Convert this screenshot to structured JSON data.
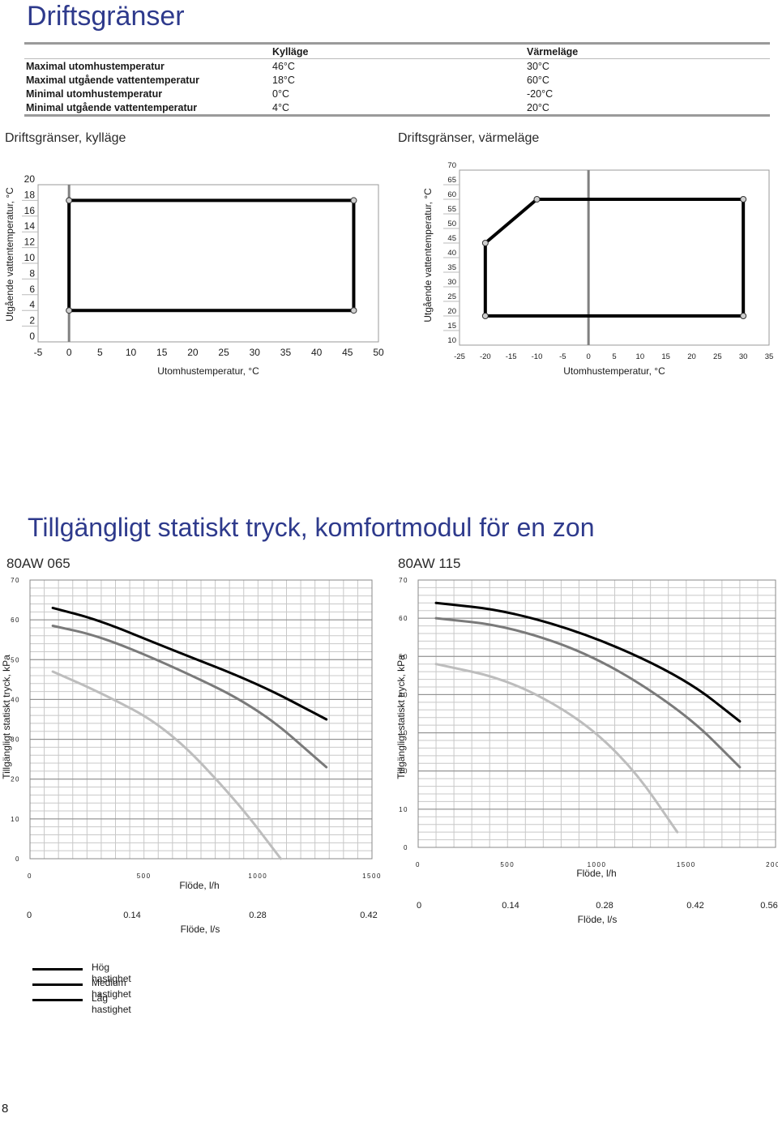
{
  "page_title": "Driftsgränser",
  "limits_table": {
    "headers": [
      "",
      "Kylläge",
      "Värmeläge"
    ],
    "rows": [
      [
        "Maximal utomhustemperatur",
        "46°C",
        "30°C"
      ],
      [
        "Maximal utgående vattentemperatur",
        "18°C",
        "60°C"
      ],
      [
        "Minimal utomhustemperatur",
        "0°C",
        "-20°C"
      ],
      [
        "Minimal utgående vattentemperatur",
        "4°C",
        "20°C"
      ]
    ]
  },
  "chart_cool_title": "Driftsgränser, kylläge",
  "chart_heat_title": "Driftsgränser, värmeläge",
  "section2_title": "Tillgängligt statiskt tryck, komfortmodul för en zon",
  "model_left": "80AW 065",
  "model_right": "80AW 115",
  "page_number": "8",
  "legend": [
    {
      "label": "Hög hastighet"
    },
    {
      "label": "Medium hastighet"
    },
    {
      "label": "Låg hastighet"
    }
  ],
  "chart_data": [
    {
      "id": "cool",
      "type": "line",
      "xlabel": "Utomhustemperatur, °C",
      "ylabel": "Utgående vattentemperatur, °C",
      "x_ticks": [
        "-5",
        "0",
        "5",
        "10",
        "15",
        "20",
        "25",
        "30",
        "35",
        "40",
        "45",
        "50"
      ],
      "y_ticks": [
        "20",
        "18",
        "16",
        "14",
        "12",
        "10",
        "8",
        "6",
        "4",
        "2",
        "0"
      ],
      "xlim": [
        -5,
        50
      ],
      "ylim": [
        0,
        20
      ],
      "vline_x": 0,
      "series": [
        {
          "points": [
            [
              0,
              18
            ],
            [
              46,
              18
            ],
            [
              46,
              4
            ],
            [
              0,
              4
            ],
            [
              0,
              18
            ]
          ]
        }
      ]
    },
    {
      "id": "heat",
      "type": "line",
      "xlabel": "Utomhustemperatur, °C",
      "ylabel": "Utgående vattentemperatur, °C",
      "x_ticks": [
        "-25",
        "-20",
        "-15",
        "-10",
        "-5",
        "0",
        "5",
        "10",
        "15",
        "20",
        "25",
        "30",
        "35"
      ],
      "y_ticks": [
        "70",
        "65",
        "60",
        "55",
        "50",
        "45",
        "40",
        "35",
        "30",
        "25",
        "20",
        "15",
        "10"
      ],
      "xlim": [
        -25,
        35
      ],
      "ylim": [
        10,
        70
      ],
      "vline_x": 0,
      "series": [
        {
          "points": [
            [
              -20,
              20
            ],
            [
              -20,
              45
            ],
            [
              -10,
              60
            ],
            [
              30,
              60
            ],
            [
              30,
              20
            ],
            [
              -20,
              20
            ]
          ]
        }
      ]
    },
    {
      "id": "p065",
      "type": "line",
      "ylabel": "Tillgängligt statiskt tryck, kPa",
      "xlabel": "Flöde, l/h",
      "xlabel2": "Flöde, l/s",
      "x_ticks": [
        "0",
        "500",
        "1000",
        "1500"
      ],
      "x2_ticks": [
        "0",
        "0.14",
        "0.28",
        "0.42"
      ],
      "y_ticks": [
        "70",
        "60",
        "50",
        "40",
        "30",
        "20",
        "10",
        "0"
      ],
      "xlim": [
        0,
        1500
      ],
      "ylim": [
        0,
        70
      ],
      "series": [
        {
          "name": "Hög hastighet",
          "color": "#000000",
          "points": [
            [
              100,
              63
            ],
            [
              300,
              60
            ],
            [
              600,
              53
            ],
            [
              1000,
              44
            ],
            [
              1300,
              35
            ]
          ]
        },
        {
          "name": "Medium hastighet",
          "color": "#7a7a7a",
          "points": [
            [
              100,
              58.5
            ],
            [
              300,
              56
            ],
            [
              600,
              49
            ],
            [
              1000,
              38
            ],
            [
              1300,
              23
            ]
          ]
        },
        {
          "name": "Låg hastighet",
          "color": "#bdbdbd",
          "points": [
            [
              100,
              47
            ],
            [
              300,
              42
            ],
            [
              600,
              33
            ],
            [
              900,
              15
            ],
            [
              1100,
              0
            ]
          ]
        }
      ]
    },
    {
      "id": "p115",
      "type": "line",
      "ylabel": "Tillgängligt statiskt tryck, kPa",
      "xlabel": "Flöde, l/h",
      "xlabel2": "Flöde, l/s",
      "x_ticks": [
        "0",
        "500",
        "1000",
        "1500",
        "2000"
      ],
      "x2_ticks": [
        "0",
        "0.14",
        "0.28",
        "0.42",
        "0.56"
      ],
      "y_ticks": [
        "70",
        "60",
        "50",
        "40",
        "30",
        "20",
        "10",
        "0"
      ],
      "xlim": [
        0,
        2000
      ],
      "ylim": [
        0,
        70
      ],
      "series": [
        {
          "name": "Hög hastighet",
          "color": "#000000",
          "points": [
            [
              100,
              64
            ],
            [
              500,
              62
            ],
            [
              1000,
              55
            ],
            [
              1500,
              44
            ],
            [
              1800,
              33
            ]
          ]
        },
        {
          "name": "Medium hastighet",
          "color": "#7a7a7a",
          "points": [
            [
              100,
              60
            ],
            [
              500,
              58
            ],
            [
              1000,
              50
            ],
            [
              1500,
              35
            ],
            [
              1800,
              21
            ]
          ]
        },
        {
          "name": "Låg hastighet",
          "color": "#bdbdbd",
          "points": [
            [
              100,
              48
            ],
            [
              500,
              44
            ],
            [
              900,
              34
            ],
            [
              1200,
              21
            ],
            [
              1450,
              4
            ]
          ]
        }
      ]
    }
  ]
}
